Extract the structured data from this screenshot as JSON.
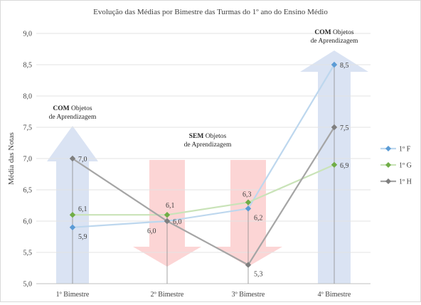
{
  "chart_data": {
    "type": "line",
    "title": "Evolução das Médias por Bimestre das Turmas do 1º ano do Ensino Médio",
    "ylabel": "Média das Notas",
    "xlabel": "",
    "categories": [
      "1º Bimestre",
      "2º Bimestre",
      "3º Bimestre",
      "4º Bimestre"
    ],
    "ylim": [
      5.0,
      9.0
    ],
    "yticks": [
      "5,0",
      "5,5",
      "6,0",
      "6,5",
      "7,0",
      "7,5",
      "8,0",
      "8,5",
      "9,0"
    ],
    "grid": true,
    "legend_position": "right",
    "series": [
      {
        "name": "1º F",
        "values": [
          5.9,
          6.0,
          6.2,
          8.5
        ],
        "labels": [
          "5,9",
          "6,0",
          "6,2",
          "8,5"
        ],
        "color": "#5b9bd5",
        "line_color": "#bdd7ee"
      },
      {
        "name": "1º G",
        "values": [
          6.1,
          6.1,
          6.3,
          6.9
        ],
        "labels": [
          "6,1",
          "6,1",
          "6,3",
          "6,9"
        ],
        "color": "#70ad47",
        "line_color": "#c9e3b8"
      },
      {
        "name": "1º H",
        "values": [
          7.0,
          6.0,
          5.3,
          7.5
        ],
        "labels": [
          "7,0",
          "6,0",
          "5,3",
          "7,5"
        ],
        "color": "#7f7f7f",
        "line_color": "#a5a5a5"
      }
    ],
    "annotations": [
      {
        "id": "com1",
        "bold": "COM",
        "rest": " Objetos",
        "line2": "de Aprendizagem",
        "arrow": "up",
        "color": "#dae3f3",
        "categories": [
          0
        ]
      },
      {
        "id": "sem",
        "bold": "SEM",
        "rest": " Objetos",
        "line2": "de Aprendizagem",
        "arrow": "down",
        "color": "#fcd5d5",
        "categories": [
          1,
          2
        ]
      },
      {
        "id": "com4",
        "bold": "COM",
        "rest": " Objetos",
        "line2": "de Aprendizagem",
        "arrow": "up",
        "color": "#dae3f3",
        "categories": [
          3
        ]
      }
    ]
  }
}
